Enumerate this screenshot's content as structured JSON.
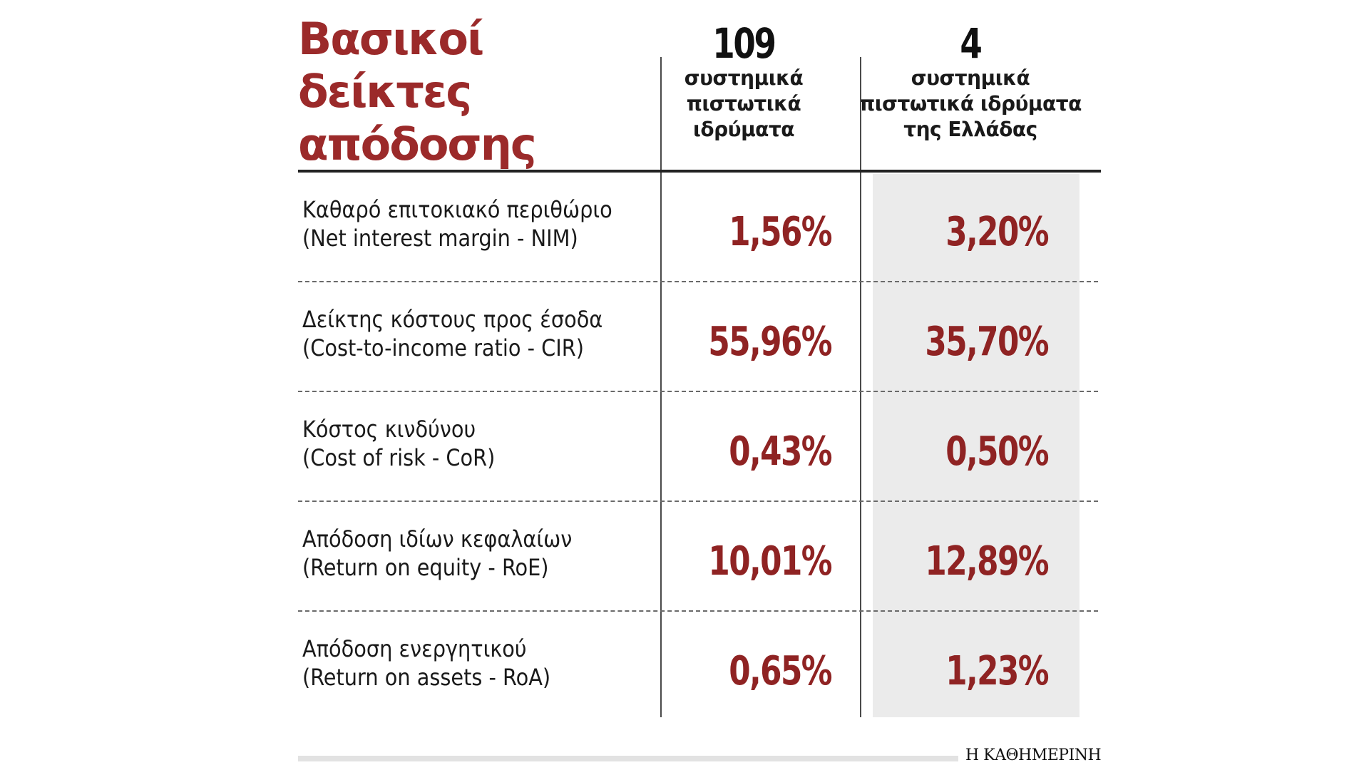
{
  "title": {
    "line1": "Βασικοί δείκτες",
    "line2": "απόδοσης"
  },
  "columns": [
    {
      "count": "109",
      "desc": "συστημικά\nπιστωτικά\nιδρύματα"
    },
    {
      "count": "4",
      "desc": "συστημικά\nπιστωτικά ιδρύματα\nτης Ελλάδας"
    }
  ],
  "rows": [
    {
      "label_gr": "Καθαρό επιτοκιακό περιθώριο",
      "label_en": "(Net interest margin - NIM)",
      "value_a": "1,56%",
      "value_b": "3,20%"
    },
    {
      "label_gr": "Δείκτης κόστους προς έσοδα",
      "label_en": "(Cost-to-income ratio - CIR)",
      "value_a": "55,96%",
      "value_b": "35,70%"
    },
    {
      "label_gr": "Κόστος κινδύνου",
      "label_en": "(Cost of risk - CoR)",
      "value_a": "0,43%",
      "value_b": "0,50%"
    },
    {
      "label_gr": "Απόδοση ιδίων κεφαλαίων",
      "label_en": "(Return on equity - RoE)",
      "value_a": "10,01%",
      "value_b": "12,89%"
    },
    {
      "label_gr": "Απόδοση ενεργητικού",
      "label_en": "(Return on assets - RoA)",
      "value_a": "0,65%",
      "value_b": "1,23%"
    }
  ],
  "source": "Η ΚΑΘΗΜΕΡΙΝΗ",
  "colors": {
    "title": "#9b2a2a",
    "value": "#8f2323",
    "shade": "#ebebeb"
  },
  "chart_data": {
    "type": "table",
    "title": "Βασικοί δείκτες απόδοσης",
    "columns": [
      "109 συστημικά πιστωτικά ιδρύματα",
      "4 συστημικά πιστωτικά ιδρύματα της Ελλάδας"
    ],
    "categories": [
      "Καθαρό επιτοκιακό περιθώριο (Net interest margin - NIM)",
      "Δείκτης κόστους προς έσοδα (Cost-to-income ratio - CIR)",
      "Κόστος κινδύνου (Cost of risk - CoR)",
      "Απόδοση ιδίων κεφαλαίων (Return on equity - RoE)",
      "Απόδοση ενεργητικού (Return on assets - RoA)"
    ],
    "series": [
      {
        "name": "109 συστημικά πιστωτικά ιδρύματα",
        "values": [
          1.56,
          55.96,
          0.43,
          10.01,
          0.65
        ]
      },
      {
        "name": "4 συστημικά πιστωτικά ιδρύματα της Ελλάδας",
        "values": [
          3.2,
          35.7,
          0.5,
          12.89,
          1.23
        ]
      }
    ],
    "unit": "%"
  }
}
